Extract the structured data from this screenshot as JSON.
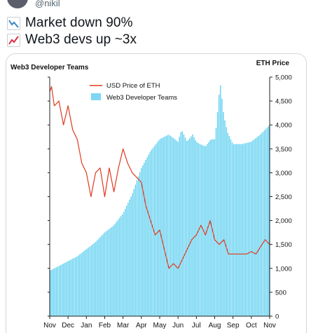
{
  "tweet": {
    "handle": "@nikil",
    "line1": "Market down 90%",
    "line2": "Web3 devs up ~3x",
    "line1_icon": "chart-decreasing-icon",
    "line2_icon": "chart-increasing-icon"
  },
  "chart_data": {
    "type": "bar",
    "title": "Web3 Developer Teams",
    "right_axis_title": "ETH Price",
    "xlabel": "",
    "ylabel": "",
    "ylim": [
      0,
      5000
    ],
    "yticks": [
      "0",
      "500",
      "1,000",
      "1,500",
      "2,000",
      "2,500",
      "3,000",
      "3,500",
      "4,000",
      "4,500",
      "5,000"
    ],
    "x_tick_labels": [
      "Nov",
      "Dec",
      "Jan",
      "Feb",
      "Mar",
      "Apr",
      "May",
      "Jun",
      "Jul",
      "Aug",
      "Sep",
      "Oct",
      "Nov"
    ],
    "legend_position": "top-left",
    "colors": {
      "teams": "#5fd0f0",
      "price": "#e03a1f"
    },
    "series": [
      {
        "name": "USD Price of ETH",
        "type": "line",
        "x_month": [
          0,
          0.1,
          0.25,
          0.5,
          0.75,
          1.0,
          1.25,
          1.5,
          1.75,
          2.0,
          2.25,
          2.5,
          2.75,
          3.0,
          3.25,
          3.5,
          3.75,
          4.0,
          4.25,
          4.5,
          4.75,
          5.0,
          5.25,
          5.5,
          5.75,
          6.0,
          6.25,
          6.5,
          6.75,
          7.0,
          7.25,
          7.5,
          7.75,
          8.0,
          8.25,
          8.5,
          8.75,
          9.0,
          9.25,
          9.5,
          9.75,
          10.0,
          10.25,
          10.5,
          10.75,
          11.0,
          11.25,
          11.5,
          11.75,
          12.0
        ],
        "values": [
          4700,
          4800,
          4400,
          4500,
          4000,
          4400,
          3900,
          3700,
          3200,
          3000,
          2500,
          3000,
          3100,
          2500,
          3100,
          2600,
          3100,
          3500,
          3200,
          3000,
          2900,
          2800,
          2300,
          2000,
          1700,
          1800,
          1400,
          1000,
          1100,
          1000,
          1200,
          1400,
          1600,
          1700,
          1900,
          1700,
          2000,
          1600,
          1500,
          1600,
          1300,
          1300,
          1300,
          1300,
          1300,
          1350,
          1300,
          1450,
          1600,
          1500
        ]
      },
      {
        "name": "Web3 Developer Teams",
        "type": "bar",
        "x_month": [
          0,
          0.5,
          1.0,
          1.5,
          2.0,
          2.5,
          3.0,
          3.5,
          4.0,
          4.5,
          5.0,
          5.5,
          6.0,
          6.5,
          7.0,
          7.2,
          7.5,
          7.8,
          8.0,
          8.2,
          8.5,
          8.8,
          9.0,
          9.1,
          9.3,
          9.5,
          9.7,
          10.0,
          10.5,
          11.0,
          11.5,
          12.0
        ],
        "values": [
          950,
          1050,
          1150,
          1250,
          1400,
          1550,
          1750,
          1900,
          2150,
          2550,
          3100,
          3450,
          3700,
          3800,
          3650,
          3900,
          3650,
          3800,
          3650,
          3600,
          3550,
          3700,
          3700,
          4000,
          4900,
          4200,
          3850,
          3600,
          3600,
          3650,
          3800,
          4000
        ]
      }
    ]
  }
}
